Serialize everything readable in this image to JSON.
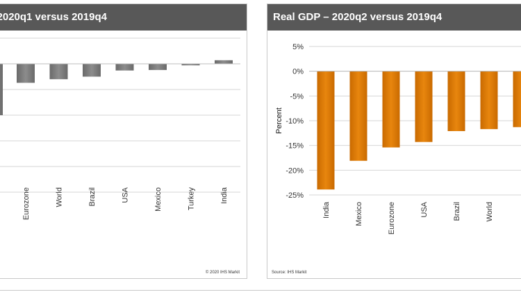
{
  "chart_data": [
    {
      "type": "bar",
      "title": "– 2020q1 versus 2019q4",
      "categories": [
        "Eurozone",
        "World",
        "Brazil",
        "USA",
        "Mexico",
        "Turkey",
        "India"
      ],
      "values": [
        -3.7,
        -3.0,
        -2.5,
        -1.3,
        -1.2,
        -0.3,
        0.7
      ],
      "partial_leftmost_value": -10.0,
      "color": "#8c8c8c",
      "ylim": [
        -25,
        5
      ],
      "grid": true,
      "source": "© 2020 IHS Markit"
    },
    {
      "type": "bar",
      "title": "Real GDP – 2020q2 versus 2019q4",
      "categories": [
        "India",
        "Mexico",
        "Eurozone",
        "USA",
        "Brazil",
        "World"
      ],
      "values": [
        -23.9,
        -18.1,
        -15.4,
        -14.3,
        -12.1,
        -11.7
      ],
      "partial_rightmost_value": -11.3,
      "color": "#e8860e",
      "ylabel": "Percent",
      "yticks": [
        "5%",
        "0%",
        "-5%",
        "-10%",
        "-15%",
        "-20%",
        "-25%"
      ],
      "ylim": [
        -25,
        5
      ],
      "grid": true,
      "source": "Source: IHS Markit"
    }
  ]
}
